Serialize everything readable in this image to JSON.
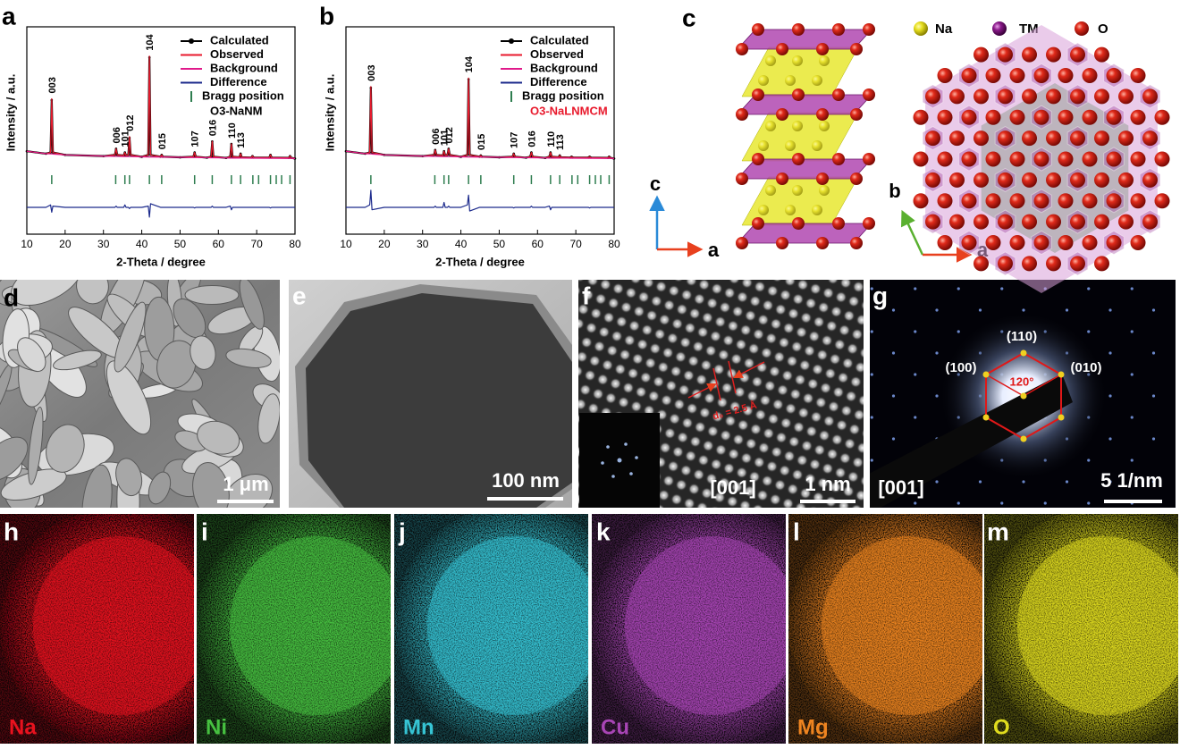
{
  "chart_data": [
    {
      "type": "line",
      "xlabel": "2-Theta / degree",
      "ylabel": "Intensity / a.u.",
      "xlim": [
        10,
        80
      ],
      "xticks": [
        10,
        20,
        30,
        40,
        50,
        60,
        70,
        80
      ],
      "ylim": [
        -60,
        110
      ],
      "x": [
        10,
        15,
        16.2,
        16.5,
        16.8,
        20,
        30,
        33.0,
        33.3,
        33.6,
        35.3,
        35.6,
        35.9,
        36.5,
        36.8,
        37.1,
        40,
        41.7,
        42.0,
        42.3,
        44.9,
        45.2,
        45.5,
        50,
        53.5,
        53.8,
        54.1,
        57,
        58.1,
        58.4,
        58.7,
        62,
        63.1,
        63.4,
        63.7,
        65.5,
        65.8,
        66.1,
        68.6,
        68.9,
        69.2,
        73.3,
        73.6,
        73.9,
        78.4,
        78.7,
        79.0,
        80
      ],
      "series": [
        {
          "name": "Calculated",
          "color": "#000000",
          "marker": "circle",
          "values": [
            8,
            6,
            7,
            50,
            7,
            5,
            4,
            5,
            10,
            5,
            4.5,
            7,
            4.5,
            5,
            19,
            5,
            3.4,
            5,
            85,
            5,
            3.5,
            5,
            3.5,
            3,
            3.5,
            7,
            3.5,
            2.7,
            3.5,
            16,
            3.5,
            2.5,
            3.5,
            14,
            3.5,
            3,
            6,
            3,
            2.8,
            4,
            2.8,
            2.8,
            5,
            2.8,
            2.6,
            4,
            2.6,
            2
          ]
        },
        {
          "name": "Observed",
          "color": "#e8192c",
          "values": [
            8,
            6,
            7,
            51,
            7,
            5,
            4,
            5,
            10,
            5,
            4.5,
            7,
            4.5,
            5,
            20,
            5,
            3.4,
            5,
            86,
            5,
            3.5,
            5,
            3.5,
            3,
            3.5,
            7,
            3.5,
            2.7,
            3.5,
            16,
            3.5,
            2.5,
            3.5,
            14,
            3.5,
            3,
            6,
            3,
            2.8,
            4,
            2.8,
            2.8,
            5,
            2.8,
            2.6,
            4,
            2.6,
            2
          ]
        },
        {
          "name": "Background",
          "color": "#e0198a",
          "values": [
            8,
            6,
            5.8,
            5.8,
            5.7,
            5,
            4,
            3.8,
            3.8,
            3.8,
            3.6,
            3.6,
            3.6,
            3.6,
            3.6,
            3.6,
            3.4,
            3.3,
            3.3,
            3.3,
            3.2,
            3.2,
            3.2,
            3,
            2.8,
            2.8,
            2.8,
            2.7,
            2.6,
            2.6,
            2.6,
            2.5,
            2.4,
            2.4,
            2.4,
            2.4,
            2.4,
            2.4,
            2.3,
            2.3,
            2.3,
            2.2,
            2.2,
            2.2,
            2.1,
            2.1,
            2.1,
            2
          ]
        },
        {
          "name": "Difference",
          "color": "#1c2a8c",
          "values": [
            -38,
            -38,
            -36,
            -42,
            -37,
            -38,
            -38,
            -38,
            -37,
            -38,
            -38,
            -36,
            -38,
            -38,
            -39,
            -38,
            -38,
            -37,
            -46,
            -35,
            -38,
            -38,
            -38,
            -38,
            -38,
            -38.5,
            -38,
            -38,
            -38,
            -37,
            -38,
            -38,
            -37,
            -40,
            -38,
            -38,
            -38,
            -38,
            -38,
            -38,
            -38,
            -38,
            -38.5,
            -38,
            -38,
            -38,
            -38,
            -38
          ]
        }
      ],
      "bragg": {
        "name": "Bragg position",
        "color": "#2e7d4f",
        "positions": [
          16.5,
          33.2,
          35.6,
          36.8,
          42.0,
          45.2,
          53.8,
          58.4,
          63.4,
          65.8,
          69,
          70.5,
          73.6,
          75.1,
          76.5,
          78.7
        ]
      },
      "sample": {
        "label": "O3-NaNM",
        "color": "#000000"
      },
      "peak_labels": [
        {
          "text": "003",
          "x": 16.5
        },
        {
          "text": "006",
          "x": 33.3
        },
        {
          "text": "101",
          "x": 35.6
        },
        {
          "text": "012",
          "x": 36.8
        },
        {
          "text": "104",
          "x": 42.0
        },
        {
          "text": "015",
          "x": 45.2
        },
        {
          "text": "107",
          "x": 53.8
        },
        {
          "text": "016",
          "x": 58.4
        },
        {
          "text": "110",
          "x": 63.4
        },
        {
          "text": "113",
          "x": 65.8
        }
      ]
    },
    {
      "type": "line",
      "xlabel": "2-Theta / degree",
      "ylabel": "Intensity / a.u.",
      "xlim": [
        10,
        80
      ],
      "xticks": [
        10,
        20,
        30,
        40,
        50,
        60,
        70,
        80
      ],
      "ylim": [
        -60,
        110
      ],
      "x": [
        10,
        15,
        16.2,
        16.5,
        16.8,
        20,
        30,
        33.0,
        33.3,
        33.6,
        35.3,
        35.6,
        35.9,
        36.5,
        36.8,
        37.1,
        40,
        41.7,
        42.0,
        42.3,
        44.9,
        45.2,
        45.5,
        50,
        53.5,
        53.8,
        54.1,
        57,
        58.1,
        58.4,
        58.7,
        62,
        63.1,
        63.4,
        63.7,
        65.5,
        65.8,
        66.1,
        68.6,
        68.9,
        69.2,
        73.3,
        73.6,
        73.9,
        78.4,
        78.7,
        79.0,
        80
      ],
      "series": [
        {
          "name": "Calculated",
          "color": "#000000",
          "marker": "circle",
          "values": [
            8,
            6,
            7,
            60,
            7,
            5,
            4,
            5,
            9,
            5,
            4.5,
            8,
            4.5,
            5,
            10,
            5,
            3.4,
            5,
            67,
            5,
            3.5,
            4.5,
            3.5,
            3,
            3.5,
            6,
            3.5,
            2.7,
            3.5,
            7,
            3.5,
            2.5,
            3.5,
            7,
            3.5,
            3,
            4.5,
            3,
            2.8,
            3.5,
            2.8,
            2.8,
            3.5,
            2.8,
            2.6,
            3.5,
            2.6,
            2
          ]
        },
        {
          "name": "Observed",
          "color": "#e8192c",
          "values": [
            8,
            6,
            7,
            61,
            7,
            5,
            4,
            5,
            9,
            5,
            4.5,
            8,
            4.5,
            5,
            10,
            5,
            3.4,
            5,
            68,
            5,
            3.5,
            4.5,
            3.5,
            3,
            3.5,
            6,
            3.5,
            2.7,
            3.5,
            7,
            3.5,
            2.5,
            3.5,
            7,
            3.5,
            3,
            4.5,
            3,
            2.8,
            3.5,
            2.8,
            2.8,
            3.5,
            2.8,
            2.6,
            3.5,
            2.6,
            2
          ]
        },
        {
          "name": "Background",
          "color": "#e0198a",
          "values": [
            8,
            6,
            5.8,
            5.8,
            5.7,
            5,
            4,
            3.8,
            3.8,
            3.8,
            3.6,
            3.6,
            3.6,
            3.6,
            3.6,
            3.6,
            3.4,
            3.3,
            3.3,
            3.3,
            3.2,
            3.2,
            3.2,
            3,
            2.8,
            2.8,
            2.8,
            2.7,
            2.6,
            2.6,
            2.6,
            2.5,
            2.4,
            2.4,
            2.4,
            2.4,
            2.4,
            2.4,
            2.3,
            2.3,
            2.3,
            2.2,
            2.2,
            2.2,
            2.1,
            2.1,
            2.1,
            2
          ]
        },
        {
          "name": "Difference",
          "color": "#1c2a8c",
          "values": [
            -38,
            -38,
            -36,
            -24,
            -40,
            -38,
            -38,
            -38,
            -37,
            -38,
            -38,
            -34,
            -38,
            -38,
            -37,
            -38,
            -38,
            -36,
            -28,
            -41,
            -38,
            -38,
            -38,
            -38,
            -38,
            -38.5,
            -38,
            -38,
            -38,
            -37,
            -38,
            -38,
            -37,
            -40,
            -38,
            -38,
            -38,
            -38,
            -38,
            -38,
            -38,
            -38,
            -38.5,
            -38,
            -38,
            -38,
            -38,
            -38
          ]
        }
      ],
      "bragg": {
        "name": "Bragg position",
        "color": "#2e7d4f",
        "positions": [
          16.5,
          33.2,
          35.6,
          36.8,
          42.0,
          45.2,
          53.8,
          58.4,
          63.4,
          65.8,
          69,
          70.5,
          73.6,
          75.1,
          76.5,
          78.7
        ]
      },
      "sample": {
        "label": "O3-NaLNMCM",
        "color": "#e8192c"
      },
      "peak_labels": [
        {
          "text": "003",
          "x": 16.5
        },
        {
          "text": "006",
          "x": 33.3
        },
        {
          "text": "101",
          "x": 35.6
        },
        {
          "text": "012",
          "x": 36.8
        },
        {
          "text": "104",
          "x": 42.0
        },
        {
          "text": "015",
          "x": 45.2
        },
        {
          "text": "107",
          "x": 53.8
        },
        {
          "text": "016",
          "x": 58.4
        },
        {
          "text": "110",
          "x": 63.4
        },
        {
          "text": "113",
          "x": 65.8
        }
      ]
    }
  ],
  "panel_labels": [
    "a",
    "b",
    "c",
    "d",
    "e",
    "f",
    "g",
    "h",
    "i",
    "j",
    "k",
    "l",
    "m"
  ],
  "structure": {
    "legend": [
      "Na",
      "TM",
      "O"
    ],
    "axes_left": [
      "c",
      "a"
    ],
    "axes_right": [
      "b",
      "a"
    ]
  },
  "sem": {
    "scale_bar": "1 μm"
  },
  "tem": {
    "scale_bar": "100 nm"
  },
  "hrtem": {
    "d_spacing": "d₀ = 2.5 Å",
    "zone_axis": "[001]",
    "scale_bar": "1 nm"
  },
  "saed": {
    "spots": [
      "(110)",
      "(100)",
      "(010)"
    ],
    "angle": "120°",
    "zone_axis": "[001]",
    "scale_bar": "5 1/nm"
  },
  "eds_maps": [
    {
      "element": "Na",
      "color": "#e8121e"
    },
    {
      "element": "Ni",
      "color": "#46c040"
    },
    {
      "element": "Mn",
      "color": "#36c4d4"
    },
    {
      "element": "Cu",
      "color": "#a845b5"
    },
    {
      "element": "Mg",
      "color": "#ee8420"
    },
    {
      "element": "O",
      "color": "#e0dc1e"
    }
  ]
}
